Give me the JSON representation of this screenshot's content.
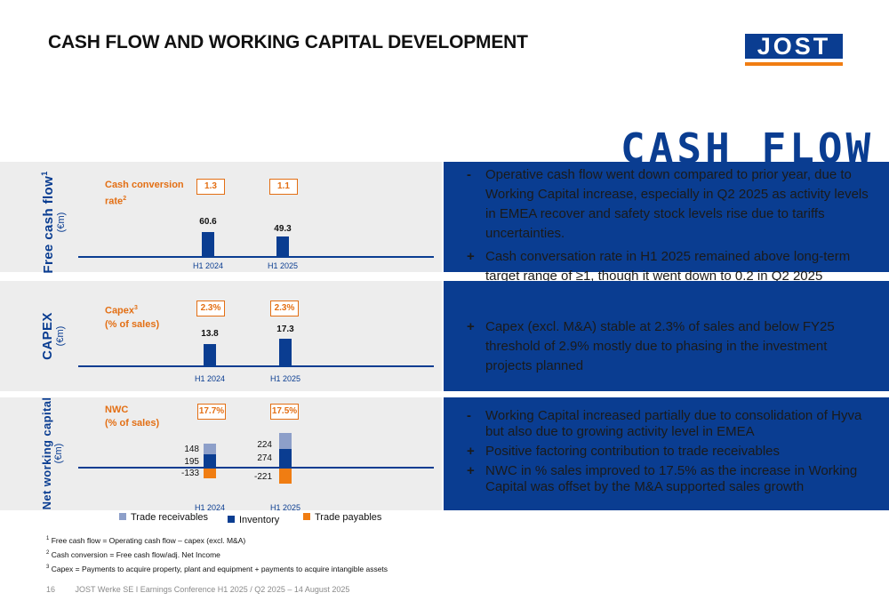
{
  "title": "CASH FLOW AND WORKING CAPITAL DEVELOPMENT",
  "logo_text": "JOST",
  "stamp_text": "CASH FLOW",
  "colors": {
    "brand_blue": "#0a3d91",
    "accent_orange": "#e36f14",
    "trade_receivables": "#8d9fc9",
    "inventory": "#0a3d91",
    "trade_payables": "#f07d12"
  },
  "fcf": {
    "side_label": "Free cash flow",
    "side_sup": "1",
    "unit": "(€m)",
    "metric_label": "Cash conversion rate",
    "metric_label_line1": "Cash conversion",
    "metric_label_line2": "rate",
    "metric_sup": "2",
    "ratios": [
      "1.3",
      "1.1"
    ],
    "values": [
      "60.6",
      "49.3"
    ],
    "years": [
      "H1 2024",
      "H1 2025"
    ]
  },
  "capex": {
    "side_label": "CAPEX",
    "unit": "(€m)",
    "metric_label_line1": "Capex",
    "metric_sup": "3",
    "metric_label_line2": "(% of sales)",
    "ratios": [
      "2.3%",
      "2.3%"
    ],
    "values": [
      "13.8",
      "17.3"
    ],
    "years": [
      "H1 2024",
      "H1 2025"
    ]
  },
  "nwc": {
    "side_label": "Net working capital",
    "unit": "(€m)",
    "metric_label_line1": "NWC",
    "metric_label_line2": "(% of sales)",
    "ratios": [
      "17.7%",
      "17.5%"
    ],
    "years": [
      "H1 2024",
      "H1 2025"
    ],
    "h1_2024": {
      "receivables": "148",
      "inventory": "195",
      "payables": "-133"
    },
    "h1_2025": {
      "receivables": "224",
      "inventory": "274",
      "payables": "-221"
    }
  },
  "chart_data": [
    {
      "type": "bar",
      "categories": [
        "H1 2024",
        "H1 2025"
      ],
      "values": [
        60.6,
        49.3
      ],
      "title": "Free cash flow",
      "ylabel": "(€m)",
      "annotations": {
        "Cash conversion rate": [
          1.3,
          1.1
        ]
      }
    },
    {
      "type": "bar",
      "categories": [
        "H1 2024",
        "H1 2025"
      ],
      "values": [
        13.8,
        17.3
      ],
      "title": "CAPEX",
      "ylabel": "(€m)",
      "annotations": {
        "Capex (% of sales)": [
          "2.3%",
          "2.3%"
        ]
      }
    },
    {
      "type": "bar",
      "stacked": true,
      "categories": [
        "H1 2024",
        "H1 2025"
      ],
      "series": [
        {
          "name": "Trade receivables",
          "values": [
            148,
            224
          ]
        },
        {
          "name": "Inventory",
          "values": [
            195,
            274
          ]
        },
        {
          "name": "Trade payables",
          "values": [
            -133,
            -221
          ]
        }
      ],
      "title": "Net working capital",
      "ylabel": "(€m)",
      "annotations": {
        "NWC (% of sales)": [
          "17.7%",
          "17.5%"
        ]
      }
    }
  ],
  "bullets_fcf": [
    {
      "symbol": "-",
      "text": "Operative cash flow went down compared to prior year, due to Working Capital increase, especially in Q2 2025 as activity levels in EMEA recover and safety stock levels rise due to tariffs uncertainties."
    },
    {
      "symbol": "+",
      "text": "Cash conversation rate in H1 2025 remained above long-term target range of ≥1, though it went down to 0.2 in Q2 2025"
    }
  ],
  "bullets_capex": [
    {
      "symbol": "+",
      "text": "Capex (excl. M&A) stable at 2.3% of sales and below FY25 threshold of 2.9% mostly due to phasing in the investment projects planned"
    }
  ],
  "bullets_nwc": [
    {
      "symbol": "-",
      "text": "Working Capital increased partially due to consolidation of Hyva but also due to growing activity level in EMEA"
    },
    {
      "symbol": "+",
      "text": "Positive factoring contribution to trade receivables"
    },
    {
      "symbol": "+",
      "text": "NWC in % sales improved to 17.5% as the increase in Working Capital was offset by the M&A supported sales growth"
    }
  ],
  "legend": [
    "Trade receivables",
    "Inventory",
    "Trade payables"
  ],
  "footnotes": [
    {
      "sup": "1",
      "text": "Free cash flow = Operating cash flow – capex (excl. M&A)"
    },
    {
      "sup": "2",
      "text": "Cash conversion = Free cash flow/adj. Net Income"
    },
    {
      "sup": "3",
      "text": "Capex = Payments to acquire property, plant and equipment + payments to acquire intangible assets"
    }
  ],
  "footer": {
    "page": "16",
    "text": "JOST Werke SE  I  Earnings Conference H1 2025 / Q2 2025 – 14 August 2025"
  }
}
